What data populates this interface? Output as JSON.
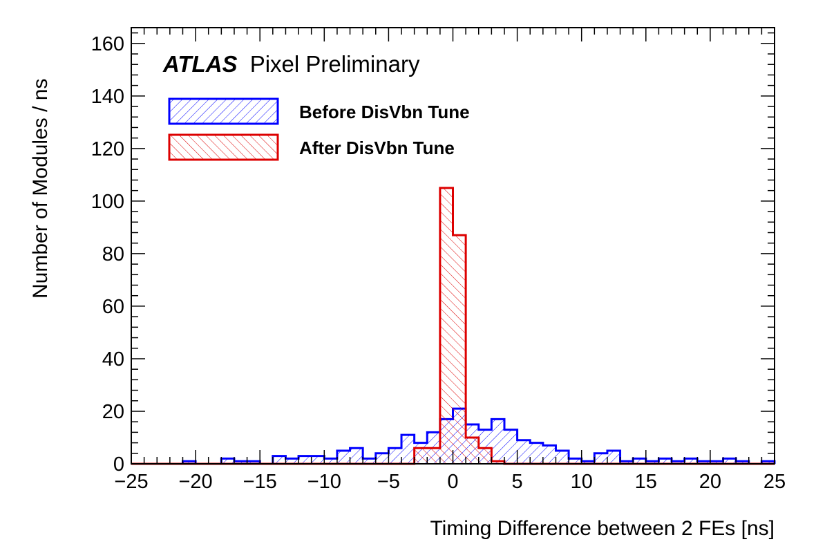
{
  "chart_data": {
    "type": "histogram",
    "title": "",
    "brand_bold": "ATLAS",
    "brand_rest": "Pixel Preliminary",
    "xlabel": "Timing Difference between 2 FEs [ns]",
    "ylabel": "Number of Modules / ns",
    "xlim": [
      -25,
      25
    ],
    "ylim": [
      0,
      166
    ],
    "xticks": [
      -25,
      -20,
      -15,
      -10,
      -5,
      0,
      5,
      10,
      15,
      20,
      25
    ],
    "yticks": [
      0,
      20,
      40,
      60,
      80,
      100,
      120,
      140,
      160
    ],
    "bin_width": 1,
    "bin_edges_start": -25,
    "legend_position": "top-left",
    "grid": false,
    "series": [
      {
        "name": "Before DisVbn Tune",
        "color": "#0000ff",
        "hatch": "forward",
        "values": [
          0,
          0,
          0,
          0,
          1,
          0,
          0,
          2,
          1,
          1,
          0,
          3,
          2,
          3,
          3,
          2,
          5,
          6,
          2,
          4,
          6,
          11,
          8,
          12,
          17,
          21,
          15,
          13,
          17,
          13,
          9,
          8,
          7,
          5,
          2,
          1,
          4,
          5,
          1,
          2,
          1,
          2,
          1,
          2,
          1,
          1,
          2,
          1,
          0,
          1
        ]
      },
      {
        "name": "After DisVbn Tune",
        "color": "#dd0000",
        "hatch": "backward",
        "values": [
          0,
          0,
          0,
          0,
          0,
          0,
          0,
          0,
          0,
          0,
          0,
          0,
          0,
          0,
          0,
          0,
          0,
          0,
          0,
          0,
          0,
          0,
          6,
          6,
          105,
          87,
          10,
          6,
          1,
          0,
          0,
          0,
          0,
          0,
          0,
          0,
          0,
          0,
          0,
          0,
          0,
          0,
          0,
          0,
          0,
          0,
          0,
          0,
          0,
          0
        ]
      }
    ]
  }
}
